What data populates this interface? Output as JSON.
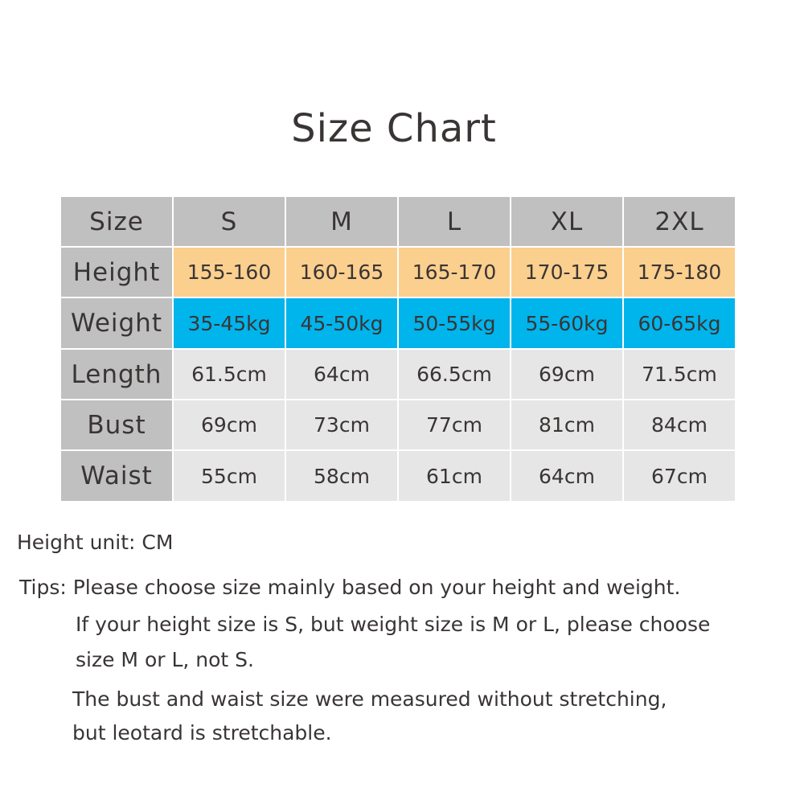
{
  "title": "Size Chart",
  "colors": {
    "header": "#c0c0c0",
    "height_row": "#fbcf8e",
    "weight_row": "#00b4ec",
    "body": "#e6e6e6"
  },
  "table": {
    "header": [
      "Size",
      "S",
      "M",
      "L",
      "XL",
      "2XL"
    ],
    "rows": [
      {
        "label": "Height",
        "values": [
          "155-160",
          "160-165",
          "165-170",
          "170-175",
          "175-180"
        ]
      },
      {
        "label": "Weight",
        "values": [
          "35-45kg",
          "45-50kg",
          "50-55kg",
          "55-60kg",
          "60-65kg"
        ]
      },
      {
        "label": "Length",
        "values": [
          "61.5cm",
          "64cm",
          "66.5cm",
          "69cm",
          "71.5cm"
        ]
      },
      {
        "label": "Bust",
        "values": [
          "69cm",
          "73cm",
          "77cm",
          "81cm",
          "84cm"
        ]
      },
      {
        "label": "Waist",
        "values": [
          "55cm",
          "58cm",
          "61cm",
          "64cm",
          "67cm"
        ]
      }
    ]
  },
  "notes": {
    "unit": "Height unit: CM",
    "tip1": "Tips: Please choose size mainly based on your height and weight.",
    "tip2a": "If your height size is S, but weight size is M or L, please choose",
    "tip2b": "size M or L, not S.",
    "tip3a": "The bust and waist size were measured without stretching,",
    "tip3b": "but leotard is stretchable."
  }
}
